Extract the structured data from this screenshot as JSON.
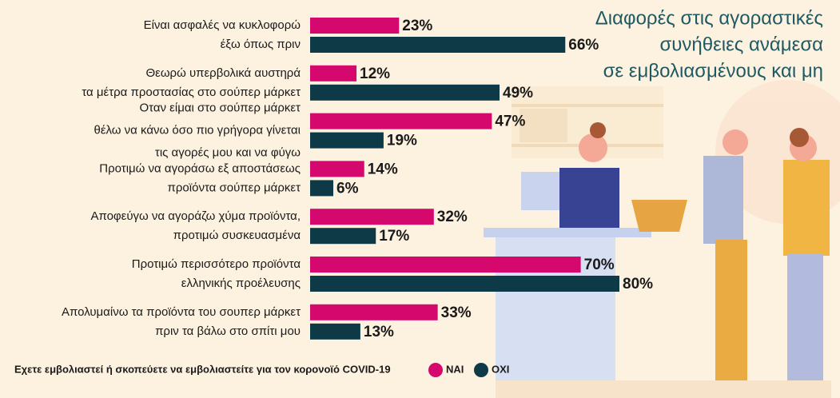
{
  "chart_data": {
    "type": "bar",
    "orientation": "horizontal",
    "title": [
      "Διαφορές στις αγοραστικές",
      "συνήθειες ανάμεσα",
      "σε εμβολιασμένους και μη"
    ],
    "categories": [
      [
        "Είναι ασφαλές να κυκλοφορώ",
        "έξω όπως πριν"
      ],
      [
        "Θεωρώ υπερβολικά αυστηρά",
        "τα μέτρα προστασίας στο σούπερ μάρκετ"
      ],
      [
        "Οταν είμαι στο σούπερ μάρκετ",
        "θέλω να κάνω όσο πιο γρήγορα γίνεται",
        "τις αγορές μου και να φύγω"
      ],
      [
        "Προτιμώ να αγοράσω εξ αποστάσεως",
        "προϊόντα σούπερ μάρκετ"
      ],
      [
        "Αποφεύγω να αγοράζω χύμα προϊόντα,",
        "προτιμώ συσκευασμένα"
      ],
      [
        "Προτιμώ περισσότερο προϊόντα",
        "ελληνικής προέλευσης"
      ],
      [
        "Απολυμαίνω τα προϊόντα του σουπερ μάρκετ",
        "πριν τα βάλω στο σπίτι μου"
      ]
    ],
    "legend_title": "Εχετε εμβολιαστεί ή σκοπεύετε να εμβολιαστείτε για τον κορονοϊό COVID-19",
    "series": [
      {
        "name": "ΝΑΙ",
        "color": "#d5086e",
        "values": [
          23,
          12,
          47,
          14,
          32,
          70,
          33
        ],
        "value_labels": [
          "23%",
          "12%",
          "47%",
          "14%",
          "32%",
          "70%",
          "33%"
        ]
      },
      {
        "name": "ΟΧΙ",
        "color": "#0e3a47",
        "values": [
          66,
          49,
          19,
          6,
          17,
          80,
          13
        ],
        "value_labels": [
          "66%",
          "49%",
          "19%",
          "6%",
          "17%",
          "80%",
          "13%"
        ]
      }
    ]
  }
}
